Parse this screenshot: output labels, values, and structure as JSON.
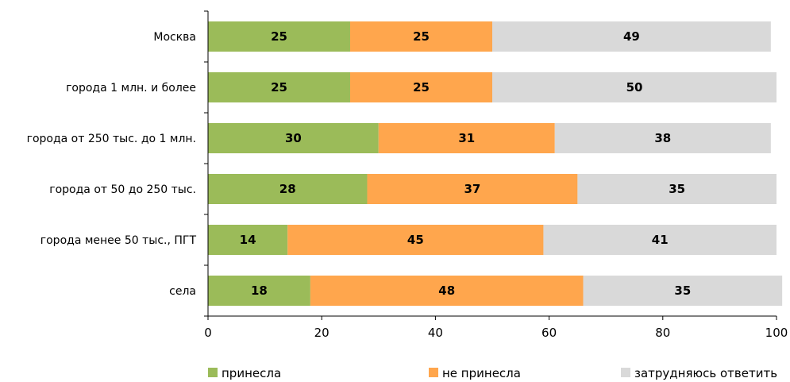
{
  "chart_data": {
    "type": "bar",
    "orientation": "horizontal",
    "stacked": true,
    "categories": [
      "Москва",
      "города 1 млн. и более",
      "города от 250 тыс. до 1 млн.",
      "города от 50 до 250 тыс.",
      "города менее 50 тыс., ПГТ",
      "села"
    ],
    "series": [
      {
        "name": "принесла",
        "color": "#9bbb59",
        "values": [
          25,
          25,
          30,
          28,
          14,
          18
        ]
      },
      {
        "name": "не принесла",
        "color": "#ffa64d",
        "values": [
          25,
          25,
          31,
          37,
          45,
          48
        ]
      },
      {
        "name": "затрудняюсь ответить",
        "color": "#d9d9d9",
        "values": [
          49,
          50,
          38,
          35,
          41,
          35
        ]
      }
    ],
    "xlim": [
      0,
      100
    ],
    "xticks": [
      "0",
      "20",
      "40",
      "60",
      "80",
      "100"
    ],
    "grid": false,
    "legend_position": "bottom"
  }
}
